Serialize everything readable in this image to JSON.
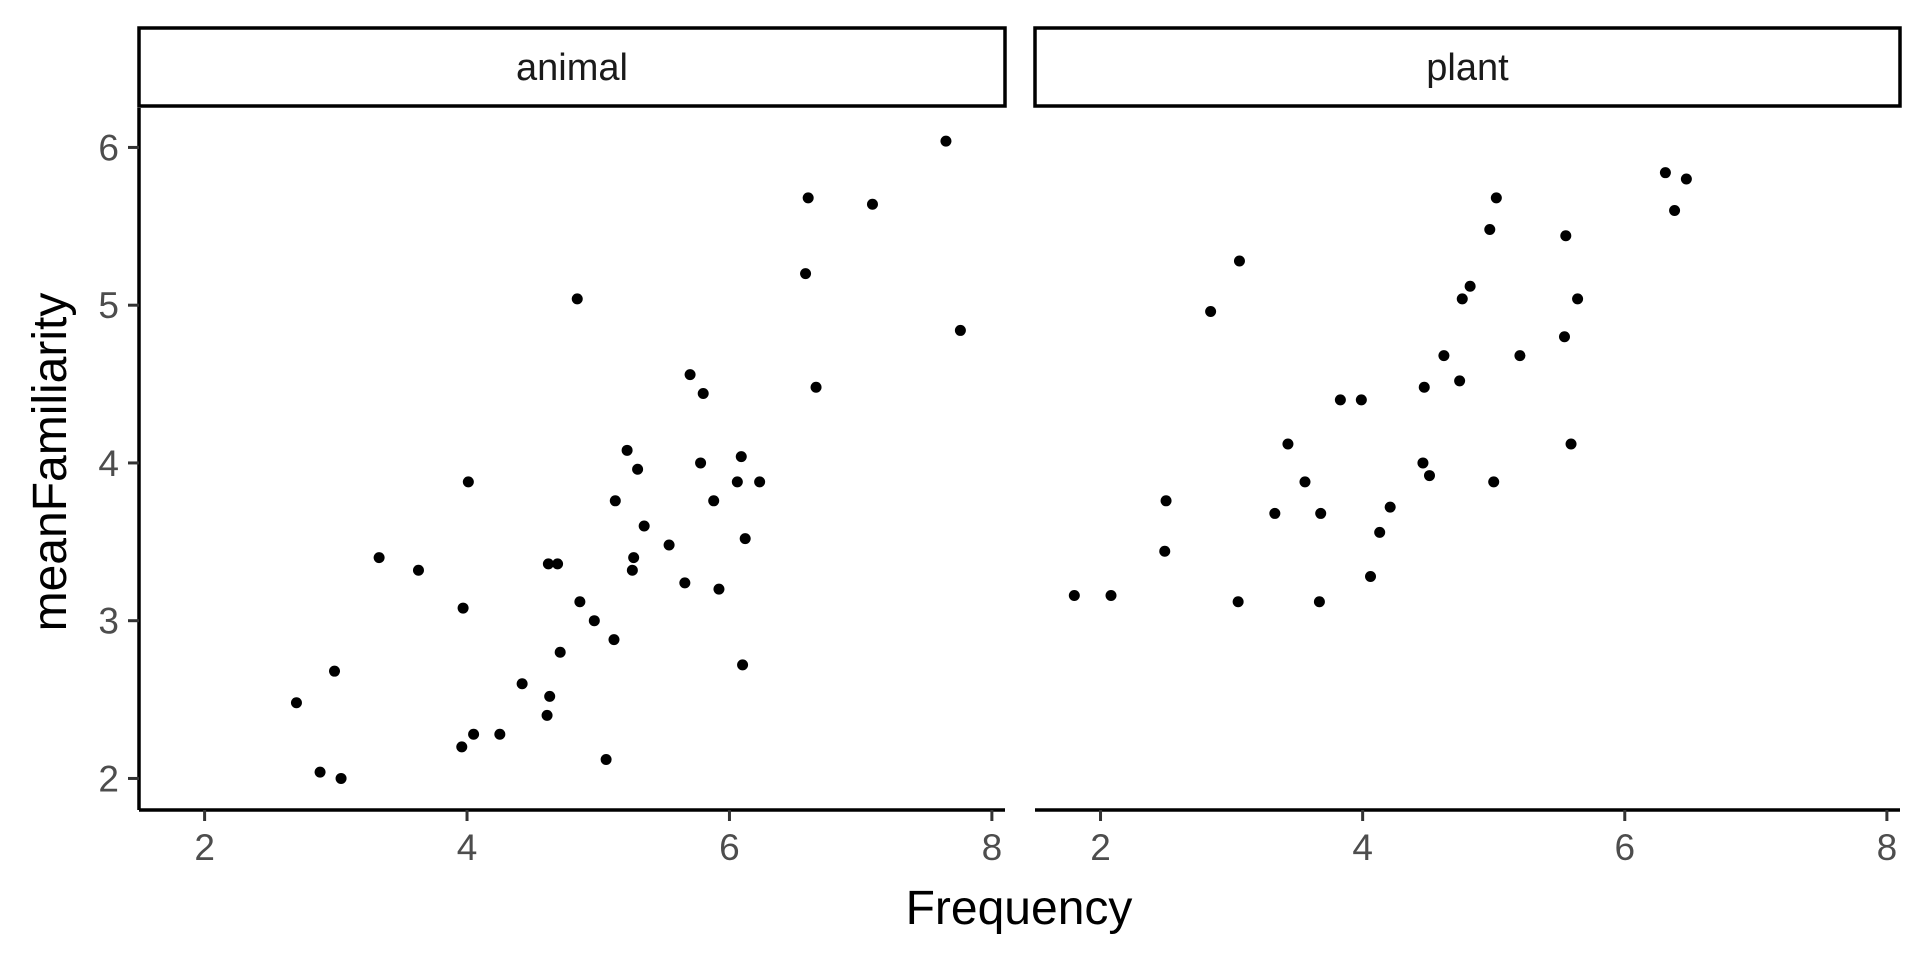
{
  "chart_data": {
    "type": "scatter",
    "xlabel": "Frequency",
    "ylabel": "meanFamiliarity",
    "xlim": [
      1.5,
      8.1
    ],
    "ylim": [
      1.8,
      6.25
    ],
    "x_ticks": [
      2,
      4,
      6,
      8
    ],
    "y_ticks": [
      2,
      3,
      4,
      5,
      6
    ],
    "x_tick_labels": [
      "2",
      "4",
      "6",
      "8"
    ],
    "y_tick_labels": [
      "2",
      "3",
      "4",
      "5",
      "6"
    ],
    "grid": false,
    "facets": [
      {
        "label": "animal",
        "points": [
          [
            2.7,
            2.48
          ],
          [
            2.88,
            2.04
          ],
          [
            2.99,
            2.68
          ],
          [
            3.04,
            2.0
          ],
          [
            3.33,
            3.4
          ],
          [
            3.63,
            3.32
          ],
          [
            3.96,
            2.2
          ],
          [
            3.97,
            3.08
          ],
          [
            4.01,
            3.88
          ],
          [
            4.05,
            2.28
          ],
          [
            4.25,
            2.28
          ],
          [
            4.42,
            2.6
          ],
          [
            4.61,
            2.4
          ],
          [
            4.62,
            3.36
          ],
          [
            4.63,
            2.52
          ],
          [
            4.69,
            3.36
          ],
          [
            4.71,
            2.8
          ],
          [
            4.84,
            5.04
          ],
          [
            4.86,
            3.12
          ],
          [
            4.97,
            3.0
          ],
          [
            5.06,
            2.12
          ],
          [
            5.12,
            2.88
          ],
          [
            5.13,
            3.76
          ],
          [
            5.22,
            4.08
          ],
          [
            5.26,
            3.32
          ],
          [
            5.27,
            3.4
          ],
          [
            5.3,
            3.96
          ],
          [
            5.35,
            3.6
          ],
          [
            5.54,
            3.48
          ],
          [
            5.66,
            3.24
          ],
          [
            5.7,
            4.56
          ],
          [
            5.78,
            4.0
          ],
          [
            5.8,
            4.44
          ],
          [
            5.88,
            3.76
          ],
          [
            5.92,
            3.2
          ],
          [
            6.06,
            3.88
          ],
          [
            6.09,
            4.04
          ],
          [
            6.1,
            2.72
          ],
          [
            6.12,
            3.52
          ],
          [
            6.23,
            3.88
          ],
          [
            6.58,
            5.2
          ],
          [
            6.6,
            5.68
          ],
          [
            6.66,
            4.48
          ],
          [
            7.09,
            5.64
          ],
          [
            7.65,
            6.04
          ],
          [
            7.76,
            4.84
          ]
        ]
      },
      {
        "label": "plant",
        "points": [
          [
            1.8,
            3.16
          ],
          [
            2.08,
            3.16
          ],
          [
            2.49,
            3.44
          ],
          [
            2.5,
            3.76
          ],
          [
            2.84,
            4.96
          ],
          [
            3.05,
            3.12
          ],
          [
            3.06,
            5.28
          ],
          [
            3.33,
            3.68
          ],
          [
            3.43,
            4.12
          ],
          [
            3.56,
            3.88
          ],
          [
            3.67,
            3.12
          ],
          [
            3.68,
            3.68
          ],
          [
            3.83,
            4.4
          ],
          [
            3.99,
            4.4
          ],
          [
            4.06,
            3.28
          ],
          [
            4.13,
            3.56
          ],
          [
            4.21,
            3.72
          ],
          [
            4.46,
            4.0
          ],
          [
            4.47,
            4.48
          ],
          [
            4.51,
            3.92
          ],
          [
            4.62,
            4.68
          ],
          [
            4.74,
            4.52
          ],
          [
            4.76,
            5.04
          ],
          [
            4.82,
            5.12
          ],
          [
            4.97,
            5.48
          ],
          [
            5.0,
            3.88
          ],
          [
            5.02,
            5.68
          ],
          [
            5.2,
            4.68
          ],
          [
            5.54,
            4.8
          ],
          [
            5.55,
            5.44
          ],
          [
            5.59,
            4.12
          ],
          [
            5.64,
            5.04
          ],
          [
            6.31,
            5.84
          ],
          [
            6.38,
            5.6
          ],
          [
            6.47,
            5.8
          ]
        ]
      }
    ]
  }
}
